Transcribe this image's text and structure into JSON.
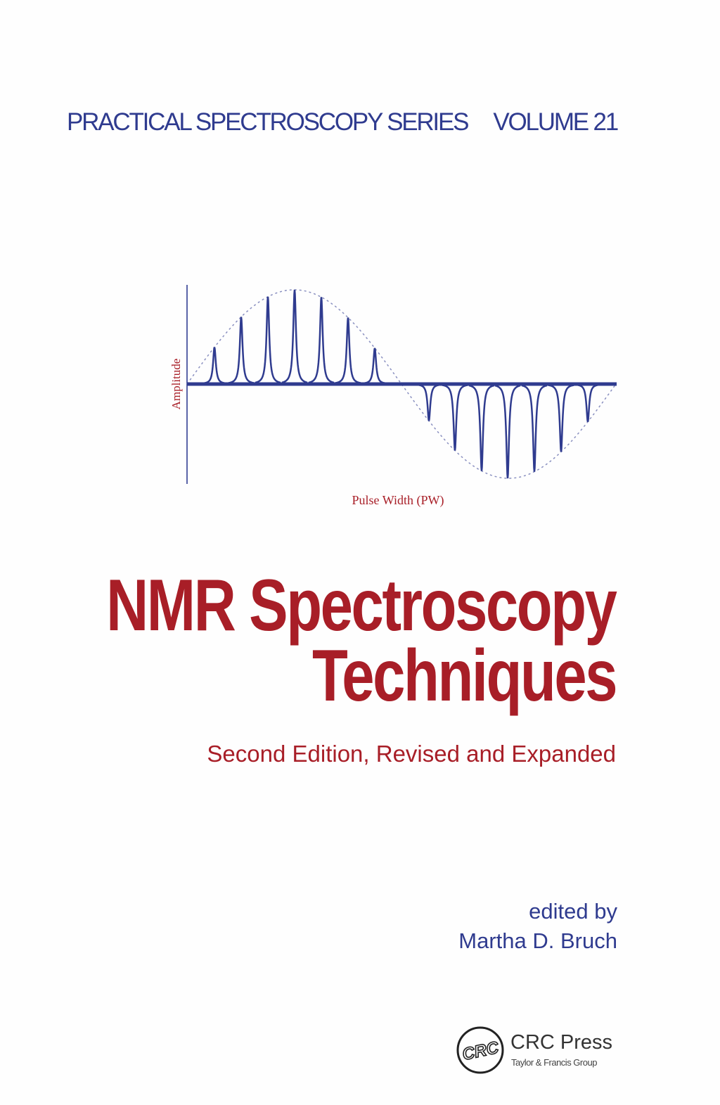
{
  "series": {
    "name": "PRACTICAL SPECTROSCOPY SERIES",
    "volume": "VOLUME 21"
  },
  "diagram": {
    "ylabel": "Amplitude",
    "xlabel": "Pulse Width (PW)",
    "colors": {
      "trace": "#2f3b8f",
      "label": "#a81e27"
    }
  },
  "title": {
    "line1": "NMR Spectroscopy",
    "line2": "Techniques"
  },
  "edition": "Second Edition, Revised and Expanded",
  "editor": {
    "prefix": "edited by",
    "name": "Martha D. Bruch"
  },
  "publisher": {
    "logo_text": "CRC",
    "name": "CRC Press",
    "group": "Taylor & Francis Group"
  },
  "colors": {
    "blue": "#2f3b8f",
    "red": "#a81e27"
  }
}
